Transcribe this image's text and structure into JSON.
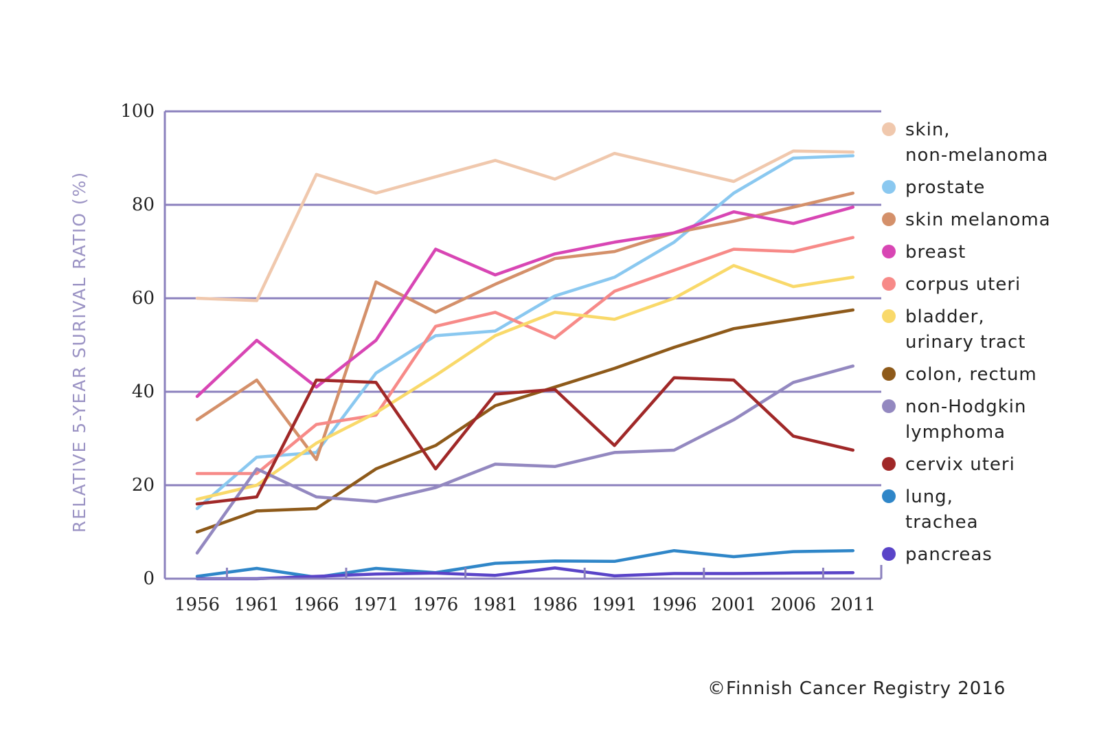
{
  "chart_data": {
    "type": "line",
    "ylabel": "RELATIVE 5-YEAR SURIVAL RATIO (%)",
    "xlabel": "",
    "ylim": [
      0,
      100
    ],
    "yticks": [
      "0",
      "20",
      "40",
      "60",
      "80",
      "100"
    ],
    "ytick_values": [
      0,
      20,
      40,
      60,
      80,
      100
    ],
    "categories": [
      "1956",
      "1961",
      "1966",
      "1971",
      "1976",
      "1981",
      "1986",
      "1991",
      "1996",
      "2001",
      "2006",
      "2011"
    ],
    "grid": "horizontal",
    "legend_position": "right",
    "series": [
      {
        "name": "skin, non-melanoma",
        "legend_lines": [
          "skin,",
          "non-melanoma"
        ],
        "color": "#f0c8ad",
        "values": [
          60,
          59.5,
          86.5,
          82.5,
          86,
          89.5,
          85.5,
          91,
          88,
          85,
          91.5,
          91.3
        ]
      },
      {
        "name": "prostate",
        "legend_lines": [
          "prostate"
        ],
        "color": "#8ac8f0",
        "values": [
          15,
          26,
          27,
          44,
          52,
          53,
          60.5,
          64.5,
          72,
          82.5,
          90,
          90.5
        ]
      },
      {
        "name": "skin melanoma",
        "legend_lines": [
          "skin melanoma"
        ],
        "color": "#d4906a",
        "values": [
          34,
          42.5,
          25.5,
          63.5,
          57,
          63,
          68.5,
          70,
          74,
          76.5,
          79.5,
          82.5
        ]
      },
      {
        "name": "breast",
        "legend_lines": [
          "breast"
        ],
        "color": "#d846b4",
        "values": [
          39,
          51,
          41,
          51,
          70.5,
          65,
          69.5,
          72,
          74,
          78.5,
          76,
          79.5
        ]
      },
      {
        "name": "corpus uteri",
        "legend_lines": [
          "corpus uteri"
        ],
        "color": "#f78a88",
        "values": [
          22.5,
          22.5,
          33,
          35,
          54,
          57,
          51.5,
          61.5,
          66,
          70.5,
          70,
          73
        ]
      },
      {
        "name": "bladder, urinary tract",
        "legend_lines": [
          "bladder,",
          "urinary tract"
        ],
        "color": "#f9d96a",
        "values": [
          17,
          20,
          29,
          35.5,
          43.5,
          52,
          57,
          55.5,
          60,
          67,
          62.5,
          64.5
        ]
      },
      {
        "name": "colon, rectum",
        "legend_lines": [
          "colon, rectum"
        ],
        "color": "#8e5a1a",
        "values": [
          10,
          14.5,
          15,
          23.5,
          28.5,
          37,
          41,
          45,
          49.5,
          53.5,
          55.5,
          57.5
        ]
      },
      {
        "name": "non-Hodgkin lymphoma",
        "legend_lines": [
          "non-Hodgkin",
          "lymphoma"
        ],
        "color": "#9388c0",
        "values": [
          5.5,
          23.5,
          17.5,
          16.5,
          19.5,
          24.5,
          24,
          27,
          27.5,
          34,
          42,
          45.5
        ]
      },
      {
        "name": "cervix uteri",
        "legend_lines": [
          "cervix uteri"
        ],
        "color": "#a02828",
        "values": [
          16,
          17.5,
          42.5,
          42,
          23.5,
          39.5,
          40.5,
          28.5,
          43,
          42.5,
          30.5,
          27.5
        ]
      },
      {
        "name": "lung, trachea",
        "legend_lines": [
          "lung,",
          "trachea"
        ],
        "color": "#2f86c8",
        "values": [
          0.5,
          2.2,
          0.3,
          2.2,
          1.3,
          3.3,
          3.8,
          3.7,
          6,
          4.7,
          5.8,
          6
        ]
      },
      {
        "name": "pancreas",
        "legend_lines": [
          "pancreas"
        ],
        "color": "#5a44c8",
        "values": [
          0,
          0,
          0.5,
          1,
          1.2,
          0.7,
          2.3,
          0.6,
          1.1,
          1.1,
          1.2,
          1.3
        ]
      }
    ]
  },
  "credit": "©Finnish Cancer Registry 2016"
}
